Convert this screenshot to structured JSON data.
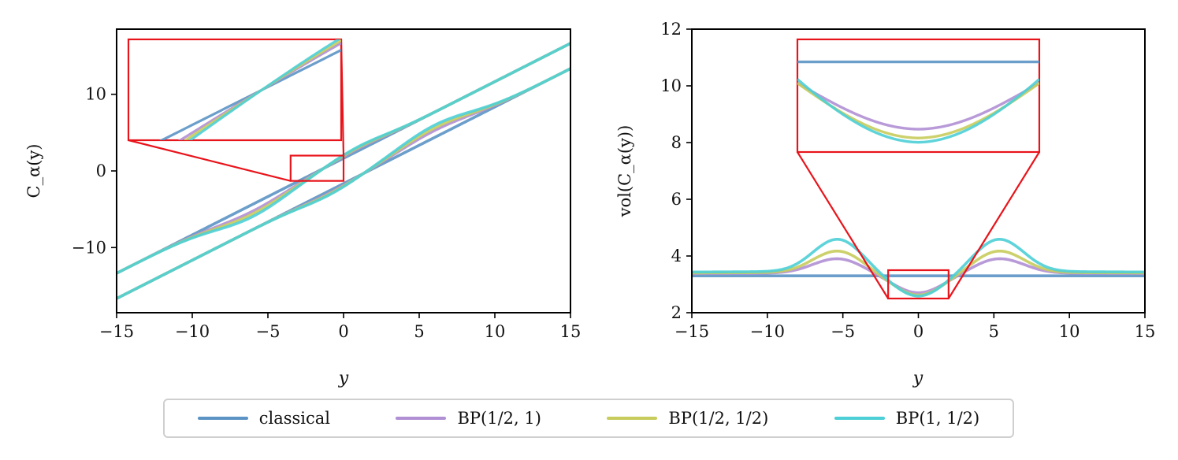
{
  "colors": {
    "classical": "#5b93c4",
    "bp_half_one": "#b08fd4",
    "bp_half_half": "#c8cc5c",
    "bp_one_half": "#4ccfd6",
    "zoom": "#e8141b",
    "axis": "#000000"
  },
  "legend": {
    "items": [
      {
        "key": "classical",
        "label": "classical"
      },
      {
        "key": "bp_half_one",
        "label": "BP(1/2, 1)"
      },
      {
        "key": "bp_half_half",
        "label": "BP(1/2, 1/2)"
      },
      {
        "key": "bp_one_half",
        "label": "BP(1, 1/2)"
      }
    ]
  },
  "chart_data": [
    {
      "type": "line",
      "id": "left",
      "title": "",
      "xlabel": "y",
      "ylabel": "C_α(y)",
      "xlim": [
        -15,
        15
      ],
      "ylim": [
        -18.5,
        18.5
      ],
      "xticks": [
        -15,
        -10,
        -5,
        0,
        5,
        10,
        15
      ],
      "xtick_labels": [
        "−15",
        "−10",
        "−5",
        "0",
        "5",
        "10",
        "15"
      ],
      "yticks": [
        -10,
        0,
        10
      ],
      "ytick_labels": [
        "−10",
        "0",
        "10"
      ],
      "description": "Upper and lower bounds of prediction interval C_α(y); lines of slope ≈ 1 offset by ≈ ±1.65; Bayes predictive bounds shrink toward 0 near y≈0",
      "series": [
        {
          "name": "classical",
          "offset": 1.65,
          "bump": 0.0
        },
        {
          "name": "BP(1/2, 1)",
          "offset": 1.65,
          "bump": 0.9
        },
        {
          "name": "BP(1/2, 1/2)",
          "offset": 1.65,
          "bump": 1.25
        },
        {
          "name": "BP(1, 1/2)",
          "offset": 1.65,
          "bump": 1.6
        }
      ],
      "zoom_region": {
        "x": [
          -3.5,
          0
        ],
        "y": [
          -1.3,
          2.0
        ]
      }
    },
    {
      "type": "line",
      "id": "right",
      "title": "",
      "xlabel": "y",
      "ylabel": "vol(C_α(y))",
      "xlim": [
        -15,
        15
      ],
      "ylim": [
        2,
        12
      ],
      "xticks": [
        -15,
        -10,
        -5,
        0,
        5,
        10,
        15
      ],
      "xtick_labels": [
        "−15",
        "−10",
        "−5",
        "0",
        "5",
        "10",
        "15"
      ],
      "yticks": [
        2,
        4,
        6,
        8,
        10,
        12
      ],
      "ytick_labels": [
        "2",
        "4",
        "6",
        "8",
        "10",
        "12"
      ],
      "series": [
        {
          "name": "classical",
          "base": 3.3,
          "dip": 0.0,
          "peak": 0.0
        },
        {
          "name": "BP(1/2, 1)",
          "base": 3.3,
          "dip": 0.6,
          "peak": 0.56
        },
        {
          "name": "BP(1/2, 1/2)",
          "base": 3.3,
          "dip": 0.68,
          "peak": 0.82
        },
        {
          "name": "BP(1, 1/2)",
          "base": 3.3,
          "dip": 0.72,
          "peak": 1.22
        }
      ],
      "sample_points": {
        "classical": [
          [
            -15,
            3.3
          ],
          [
            0,
            3.3
          ],
          [
            15,
            3.3
          ]
        ],
        "BP(1/2, 1)": [
          [
            -15,
            3.35
          ],
          [
            -5,
            3.88
          ],
          [
            0,
            2.7
          ],
          [
            5,
            3.88
          ],
          [
            15,
            3.35
          ]
        ],
        "BP(1/2, 1/2)": [
          [
            -15,
            3.38
          ],
          [
            -5.2,
            4.12
          ],
          [
            0,
            2.63
          ],
          [
            5.2,
            4.12
          ],
          [
            15,
            3.38
          ]
        ],
        "BP(1, 1/2)": [
          [
            -15,
            3.42
          ],
          [
            -5.5,
            4.52
          ],
          [
            0,
            2.58
          ],
          [
            5.5,
            4.52
          ],
          [
            15,
            3.42
          ]
        ]
      },
      "zoom_region": {
        "x": [
          -2,
          2
        ],
        "y": [
          2.5,
          3.5
        ]
      }
    }
  ]
}
